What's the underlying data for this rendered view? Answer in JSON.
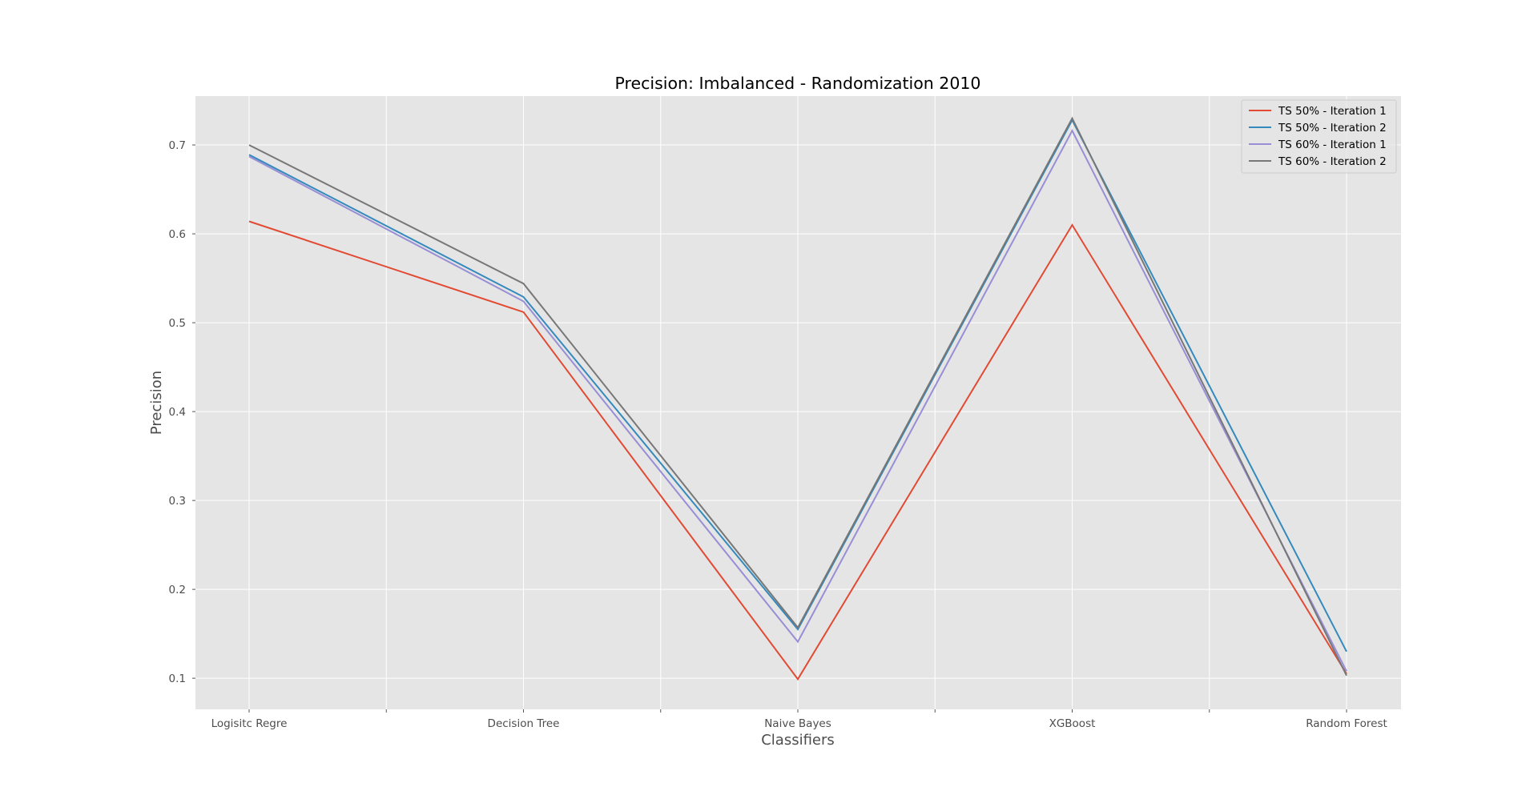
{
  "chart_data": {
    "type": "line",
    "title": "Precision: Imbalanced - Randomization 2010",
    "xlabel": "Classifiers",
    "ylabel": "Precision",
    "categories": [
      "Logisitc Regre",
      "Decision Tree",
      "Naive Bayes",
      "XGBoost",
      "Random Forest"
    ],
    "ylim": [
      0.065,
      0.755
    ],
    "yticks": [
      0.1,
      0.2,
      0.3,
      0.4,
      0.5,
      0.6,
      0.7
    ],
    "yticklabels": [
      "0.1",
      "0.2",
      "0.3",
      "0.4",
      "0.5",
      "0.6",
      "0.7"
    ],
    "grid": true,
    "legend_position": "top-right",
    "colors": {
      "plot_background": "#e5e5e5",
      "grid": "#ffffff"
    },
    "series": [
      {
        "name": "TS 50% - Iteration 1",
        "color": "#e24a33",
        "values": [
          0.614,
          0.512,
          0.099,
          0.61,
          0.105
        ]
      },
      {
        "name": "TS 50% - Iteration 2",
        "color": "#348abd",
        "values": [
          0.689,
          0.529,
          0.155,
          0.728,
          0.13
        ]
      },
      {
        "name": "TS 60% - Iteration 1",
        "color": "#988ed5",
        "values": [
          0.687,
          0.524,
          0.141,
          0.716,
          0.108
        ]
      },
      {
        "name": "TS 60% - Iteration 2",
        "color": "#777777",
        "values": [
          0.7,
          0.544,
          0.157,
          0.73,
          0.103
        ]
      }
    ]
  }
}
